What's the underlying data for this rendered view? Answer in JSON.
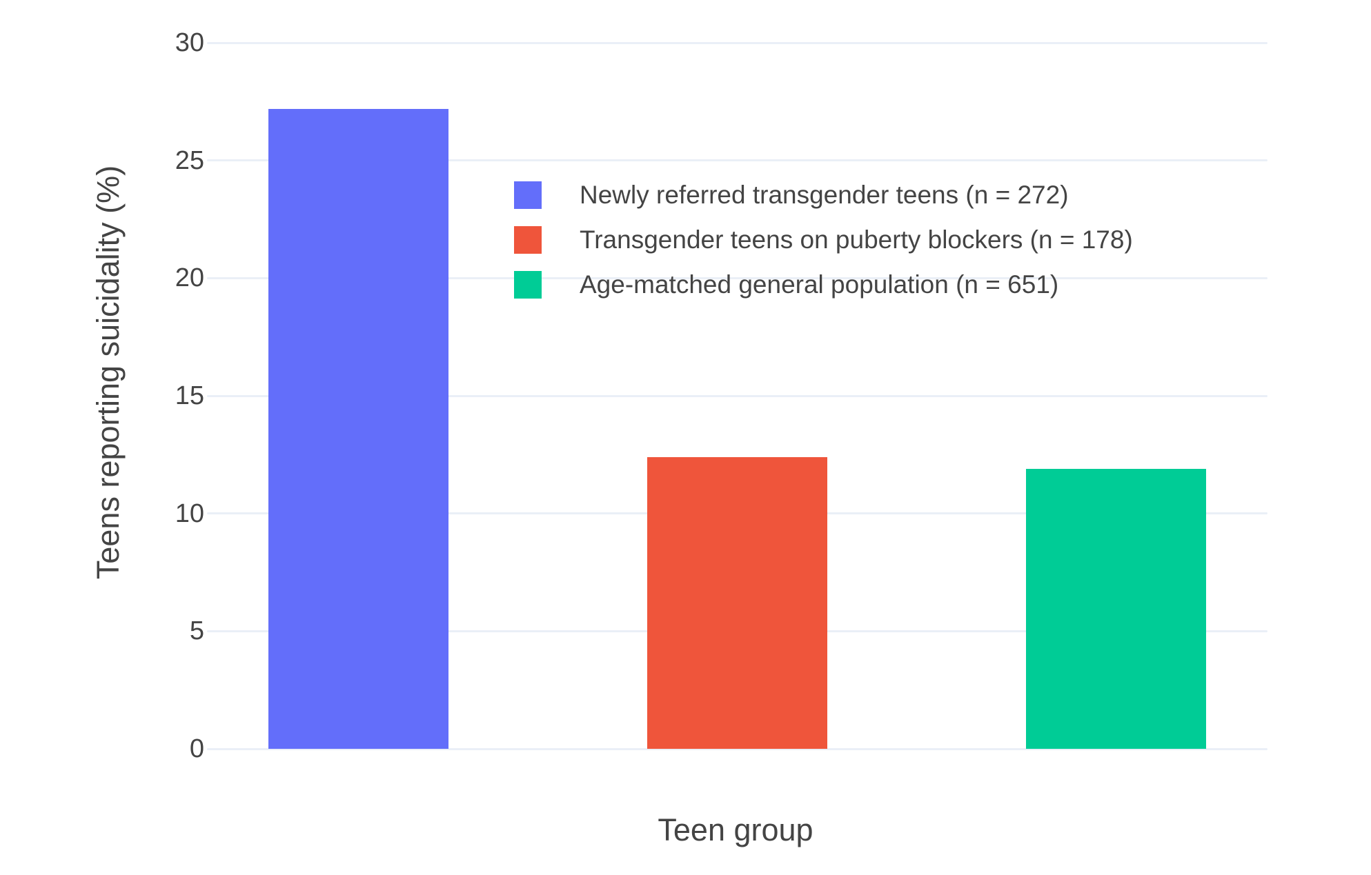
{
  "chart_data": {
    "type": "bar",
    "title": "",
    "xlabel": "Teen group",
    "ylabel": "Teens reporting suicidality (%)",
    "categories": [
      "Newly referred transgender teens (n = 272)",
      "Transgender teens on puberty blockers (n = 178)",
      "Age-matched general population (n = 651)"
    ],
    "values": [
      27.2,
      12.4,
      11.9
    ],
    "bar_colors": [
      "#636EFA",
      "#EF553B",
      "#00CC96"
    ],
    "ylim": [
      0,
      30
    ],
    "yticks": [
      0,
      5,
      10,
      15,
      20,
      25,
      30
    ],
    "grid": true,
    "grid_color": "#EAEFF7",
    "text_color": "#444444",
    "background_color": "#FFFFFF",
    "legend_position": "inside-top-right",
    "x_tick_labels_visible": false,
    "legend_entries": [
      "Newly referred transgender teens (n = 272)",
      "Transgender teens on puberty blockers (n = 178)",
      "Age-matched general population (n = 651)"
    ]
  }
}
